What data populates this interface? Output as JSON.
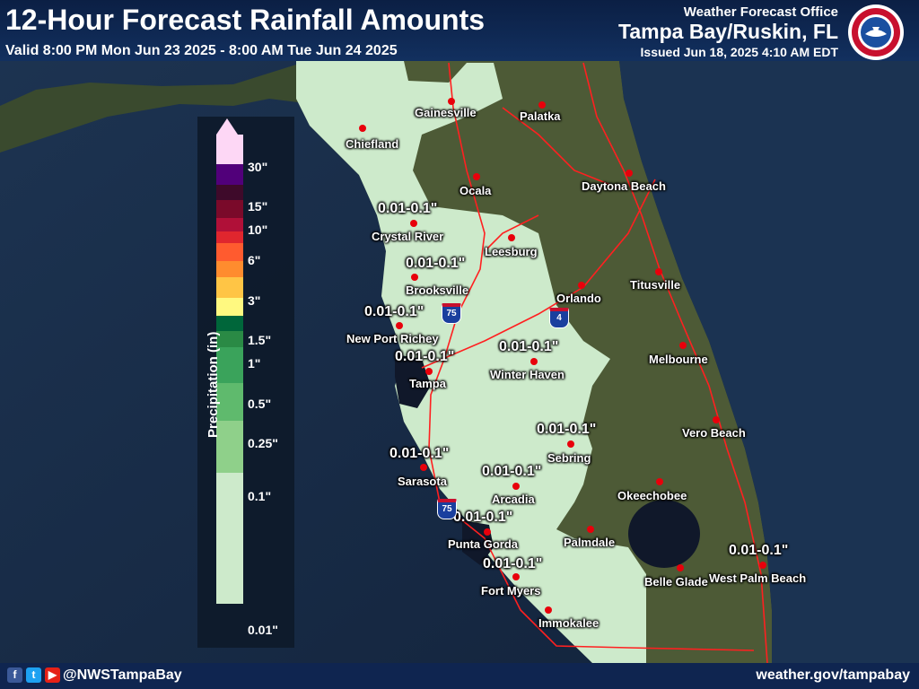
{
  "header": {
    "title": "12-Hour Forecast Rainfall Amounts",
    "valid": "Valid 8:00 PM Mon Jun 23 2025 - 8:00 AM Tue Jun 24 2025",
    "office_line1": "Weather Forecast Office",
    "office_line2": "Tampa Bay/Ruskin, FL",
    "issued": "Issued Jun 18, 2025 4:10 AM EDT"
  },
  "footer": {
    "handle": "@NWSTampaBay",
    "website": "weather.gov/tampabay",
    "social_icons": [
      "facebook-icon",
      "twitter-icon",
      "youtube-icon"
    ]
  },
  "legend": {
    "title": "Precipitation (in)",
    "labels": [
      "30\"",
      "15\"",
      "10\"",
      "6\"",
      "3\"",
      "1.5\"",
      "1\"",
      "0.5\"",
      "0.25\"",
      "0.1\"",
      "0.01\""
    ],
    "colors": [
      "#fdd7f5",
      "#51007a",
      "#3e0a2a",
      "#7a0a2a",
      "#b01038",
      "#e0262e",
      "#ff5b2f",
      "#ff8c2e",
      "#ffc545",
      "#fff980",
      "#00663a",
      "#2a8a45",
      "#3aa35b",
      "#5fba6d",
      "#8fd08a",
      "#cdeacb"
    ]
  },
  "cities": [
    "Gainesville",
    "Palatka",
    "Chiefland",
    "Ocala",
    "Daytona Beach",
    "Crystal River",
    "Leesburg",
    "Brooksville",
    "Orlando",
    "Titusville",
    "New Port Richey",
    "Melbourne",
    "Winter Haven",
    "Tampa",
    "Vero Beach",
    "Sebring",
    "Sarasota",
    "Arcadia",
    "Okeechobee",
    "Punta Gorda",
    "Palmdale",
    "Belle Glade",
    "West Palm Beach",
    "Fort Myers",
    "Immokalee"
  ],
  "amount_label": "0.01-0.1\"",
  "highways": [
    "75",
    "4",
    "75"
  ],
  "colors": {
    "forecast_fill": "#cdeacb",
    "city_marker": "#e8000b",
    "road": "#ff2020",
    "header_bg": "#0b1f44"
  }
}
